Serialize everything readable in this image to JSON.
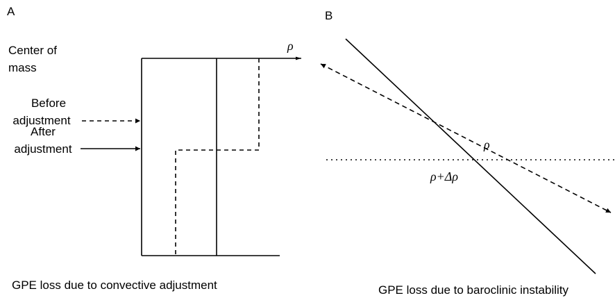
{
  "panel_a": {
    "label": "A",
    "center_of_mass": [
      "Center of",
      "mass"
    ],
    "before": [
      "Before",
      "adjustment"
    ],
    "after": [
      "After",
      "adjustment"
    ],
    "axis_label": "ρ",
    "caption": "GPE loss due to convective adjustment"
  },
  "panel_b": {
    "label": "B",
    "upper_label": "ρ",
    "lower_label": "ρ+Δρ",
    "caption": "GPE loss due to baroclinic instability"
  }
}
